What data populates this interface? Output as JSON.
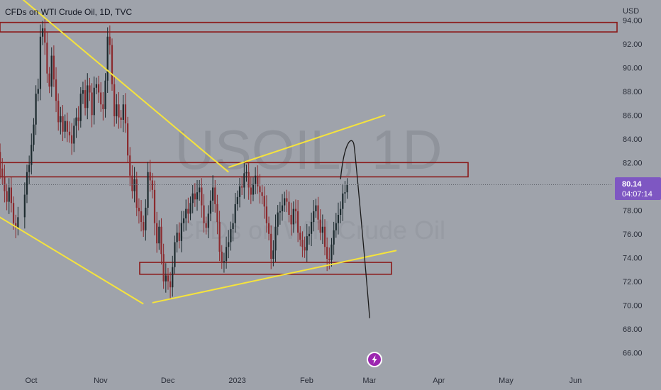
{
  "header": {
    "title": "CFDs on WTI Crude Oil, 1D, TVC",
    "currency": "USD"
  },
  "watermark": {
    "symbol": "USOIL, 1D",
    "name": "CFDs on WTI Crude Oil"
  },
  "price_label": {
    "price": "80.14",
    "countdown": "04:07:14",
    "color": "#7e57c2"
  },
  "colors": {
    "background": "#9fa3ab",
    "up_candle": "#1c2a2e",
    "down_candle": "#8b2a2e",
    "zone_border": "#8b1a1a",
    "trendline": "#f5e33c",
    "projection": "#1a1a1a",
    "event_icon": "#9c27b0"
  },
  "icons": {
    "event": "lightning-icon"
  },
  "chart_data": {
    "type": "candlestick",
    "title": "CFDs on WTI Crude Oil, 1D, TVC",
    "y_unit": "USD",
    "ylim": [
      64.5,
      95.0
    ],
    "y_ticks": [
      "94.00",
      "92.00",
      "90.00",
      "88.00",
      "86.00",
      "84.00",
      "82.00",
      "80.00",
      "78.00",
      "76.00",
      "74.00",
      "72.00",
      "70.00",
      "68.00",
      "66.00"
    ],
    "x_ticks": [
      "Oct",
      "Nov",
      "Dec",
      "2023",
      "Feb",
      "Mar",
      "Apr",
      "May",
      "Jun"
    ],
    "x_tick_days": [
      0,
      31,
      61,
      92,
      123,
      151,
      182,
      212,
      243
    ],
    "grid": false,
    "last_price": 80.14,
    "series": [
      {
        "comment": "daily closes",
        "closes": [
          [
            -13,
            82.9
          ],
          [
            -12,
            81.5
          ],
          [
            -11,
            80.8
          ],
          [
            -10,
            79.6
          ],
          [
            -9,
            78.7
          ],
          [
            -8,
            79.9
          ],
          [
            -7,
            78.6
          ],
          [
            -6,
            76.9
          ],
          [
            -5,
            76.5
          ],
          [
            -4,
            77.4
          ],
          [
            -1,
            79.3
          ],
          [
            0,
            81.2
          ],
          [
            1,
            81.8
          ],
          [
            2,
            83.5
          ],
          [
            3,
            85.2
          ],
          [
            4,
            87.8
          ],
          [
            5,
            88.2
          ],
          [
            6,
            92.6
          ],
          [
            7,
            93.3
          ],
          [
            8,
            92.1
          ],
          [
            9,
            89.5
          ],
          [
            10,
            88.4
          ],
          [
            11,
            91.0
          ],
          [
            12,
            89.0
          ],
          [
            13,
            87.2
          ],
          [
            14,
            85.4
          ],
          [
            15,
            85.9
          ],
          [
            16,
            84.6
          ],
          [
            17,
            85.5
          ],
          [
            18,
            84.6
          ],
          [
            19,
            84.3
          ],
          [
            20,
            83.6
          ],
          [
            21,
            85.1
          ],
          [
            22,
            85.8
          ],
          [
            23,
            85.5
          ],
          [
            24,
            87.8
          ],
          [
            25,
            88.1
          ],
          [
            26,
            86.6
          ],
          [
            27,
            88.5
          ],
          [
            28,
            87.9
          ],
          [
            29,
            86.0
          ],
          [
            30,
            88.3
          ],
          [
            31,
            88.6
          ],
          [
            32,
            87.9
          ],
          [
            33,
            86.9
          ],
          [
            34,
            86.5
          ],
          [
            35,
            88.9
          ],
          [
            36,
            92.6
          ],
          [
            37,
            91.9
          ],
          [
            38,
            88.6
          ],
          [
            39,
            85.9
          ],
          [
            40,
            86.9
          ],
          [
            41,
            85.8
          ],
          [
            42,
            85.6
          ],
          [
            43,
            86.9
          ],
          [
            44,
            85.3
          ],
          [
            45,
            82.6
          ],
          [
            46,
            80.9
          ],
          [
            47,
            79.6
          ],
          [
            48,
            80.6
          ],
          [
            49,
            78.2
          ],
          [
            50,
            77.9
          ],
          [
            51,
            77.0
          ],
          [
            52,
            76.3
          ],
          [
            53,
            78.2
          ],
          [
            54,
            81.2
          ],
          [
            55,
            80.5
          ],
          [
            56,
            79.7
          ],
          [
            57,
            76.9
          ],
          [
            58,
            75.2
          ],
          [
            59,
            76.6
          ],
          [
            60,
            74.3
          ],
          [
            61,
            72.0
          ],
          [
            62,
            72.5
          ],
          [
            63,
            72.0
          ],
          [
            64,
            71.5
          ],
          [
            65,
            73.2
          ],
          [
            66,
            75.3
          ],
          [
            67,
            76.1
          ],
          [
            68,
            75.4
          ],
          [
            69,
            76.9
          ],
          [
            70,
            77.3
          ],
          [
            71,
            78.1
          ],
          [
            72,
            77.7
          ],
          [
            73,
            78.6
          ],
          [
            74,
            79.4
          ],
          [
            75,
            78.9
          ],
          [
            76,
            79.5
          ],
          [
            77,
            79.9
          ],
          [
            78,
            78.4
          ],
          [
            79,
            76.9
          ],
          [
            80,
            76.5
          ],
          [
            81,
            77.7
          ],
          [
            82,
            78.8
          ],
          [
            83,
            79.9
          ],
          [
            84,
            78.5
          ],
          [
            85,
            77.0
          ],
          [
            86,
            74.5
          ],
          [
            87,
            73.6
          ],
          [
            88,
            73.7
          ],
          [
            89,
            74.9
          ],
          [
            90,
            75.3
          ],
          [
            91,
            76.4
          ],
          [
            92,
            76.9
          ],
          [
            93,
            78.5
          ],
          [
            94,
            79.1
          ],
          [
            95,
            80.0
          ],
          [
            96,
            79.9
          ],
          [
            97,
            81.1
          ],
          [
            98,
            81.2
          ],
          [
            99,
            79.9
          ],
          [
            100,
            79.3
          ],
          [
            101,
            80.2
          ],
          [
            102,
            80.9
          ],
          [
            103,
            80.0
          ],
          [
            104,
            79.5
          ],
          [
            105,
            79.2
          ],
          [
            106,
            78.3
          ],
          [
            107,
            76.9
          ],
          [
            108,
            76.0
          ],
          [
            109,
            73.9
          ],
          [
            110,
            74.6
          ],
          [
            111,
            76.6
          ],
          [
            112,
            77.8
          ],
          [
            113,
            77.9
          ],
          [
            114,
            78.4
          ],
          [
            115,
            79.0
          ],
          [
            116,
            78.7
          ],
          [
            117,
            77.6
          ],
          [
            118,
            76.8
          ],
          [
            119,
            78.1
          ],
          [
            120,
            77.9
          ],
          [
            121,
            76.1
          ],
          [
            122,
            75.5
          ],
          [
            123,
            74.9
          ],
          [
            124,
            74.6
          ],
          [
            125,
            75.8
          ],
          [
            126,
            76.0
          ],
          [
            127,
            77.0
          ],
          [
            128,
            77.9
          ],
          [
            129,
            78.4
          ],
          [
            130,
            77.2
          ],
          [
            131,
            76.1
          ],
          [
            132,
            76.6
          ],
          [
            133,
            74.9
          ],
          [
            134,
            73.9
          ],
          [
            135,
            73.8
          ],
          [
            136,
            75.1
          ],
          [
            137,
            76.3
          ],
          [
            138,
            76.9
          ],
          [
            139,
            77.6
          ],
          [
            140,
            78.1
          ],
          [
            141,
            79.4
          ],
          [
            142,
            79.5
          ],
          [
            143,
            80.14
          ]
        ]
      }
    ],
    "annotations": {
      "resistance_zones": [
        [
          93.0,
          93.8
        ],
        [
          80.8,
          82.0
        ],
        [
          72.6,
          73.6
        ]
      ],
      "trendlines": [
        {
          "from": [
            -13,
            77.5
          ],
          "to": [
            52,
            70.1
          ]
        },
        {
          "from": [
            -13,
            97.5
          ],
          "to": [
            90,
            81.2
          ]
        },
        {
          "from": [
            56,
            70.2
          ],
          "to": [
            165,
            74.6
          ]
        },
        {
          "from": [
            90,
            81.6
          ],
          "to": [
            160,
            86.0
          ]
        }
      ],
      "projection_path": [
        [
          140,
          80.6
        ],
        [
          146,
          83.5
        ],
        [
          152,
          71.5
        ],
        [
          153,
          68.9
        ]
      ]
    }
  }
}
